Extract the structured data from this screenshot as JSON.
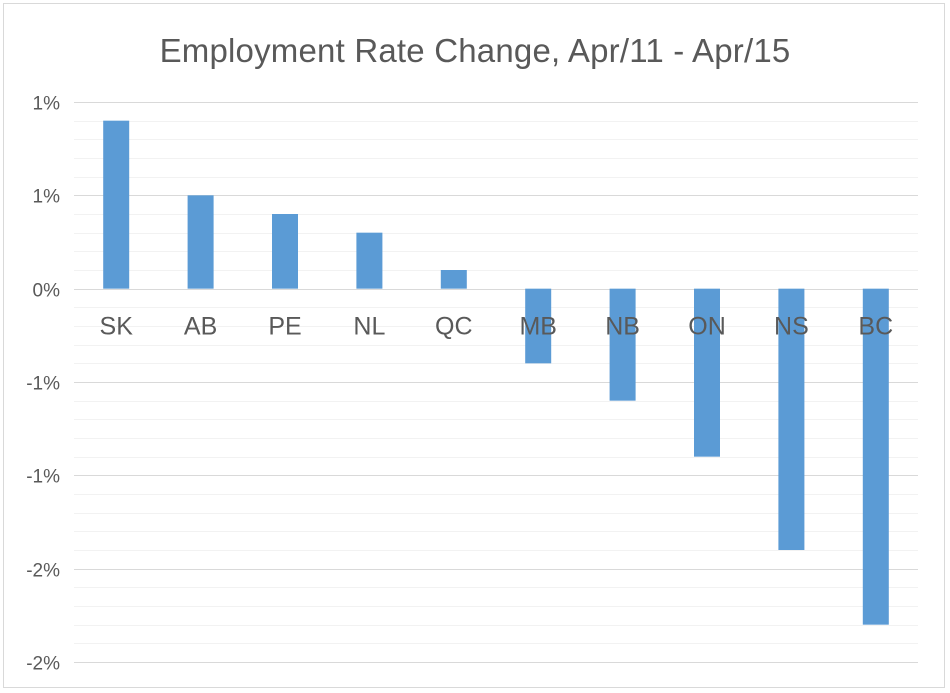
{
  "chart_data": {
    "type": "bar",
    "title": "Employment Rate Change, Apr/11 - Apr/15",
    "xlabel": "",
    "ylabel": "",
    "categories": [
      "SK",
      "AB",
      "PE",
      "NL",
      "QC",
      "MB",
      "NB",
      "ON",
      "NS",
      "BC"
    ],
    "values": [
      0.9,
      0.5,
      0.4,
      0.3,
      0.1,
      -0.4,
      -0.6,
      -0.9,
      -1.4,
      -1.8
    ],
    "ylim": [
      -2.0,
      1.0
    ],
    "yticks": [
      1.0,
      0.5,
      0.0,
      -0.5,
      -1.0,
      -1.5,
      -2.0
    ],
    "ytick_labels": [
      "1%",
      "1%",
      "0%",
      "-1%",
      "-1%",
      "-2%",
      "-2%"
    ],
    "minor_grid_step": 0.1,
    "grid": true,
    "legend": "none",
    "bar_color": "#5b9bd5",
    "grid_color": "#d9d9d9",
    "minor_grid_color": "#f2f2f2"
  }
}
